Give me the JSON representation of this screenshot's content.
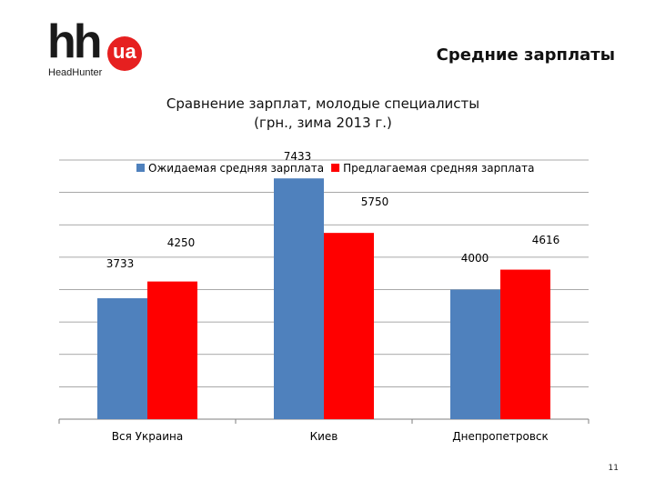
{
  "logo": {
    "brand": "hh",
    "badge": "ua",
    "subtitle": "HeadHunter"
  },
  "slide": {
    "title": "Средние зарплаты",
    "page_number": "11"
  },
  "chart_data": {
    "type": "bar",
    "title": "Сравнение зарплат, молодые специалисты",
    "subtitle": "(грн., зима 2013 г.)",
    "categories": [
      "Вся Украина",
      "Киев",
      "Днепропетровск"
    ],
    "series": [
      {
        "name": "Ожидаемая средняя зарплата",
        "values": [
          3733,
          7433,
          4000
        ],
        "color": "#4f81bd"
      },
      {
        "name": "Предлагаемая средняя зарплата",
        "values": [
          4250,
          5750,
          4616
        ],
        "color": "#ff0000"
      }
    ],
    "ylim": [
      0,
      8000
    ],
    "grid": true,
    "legend": "top",
    "xlabel": "",
    "ylabel": ""
  }
}
